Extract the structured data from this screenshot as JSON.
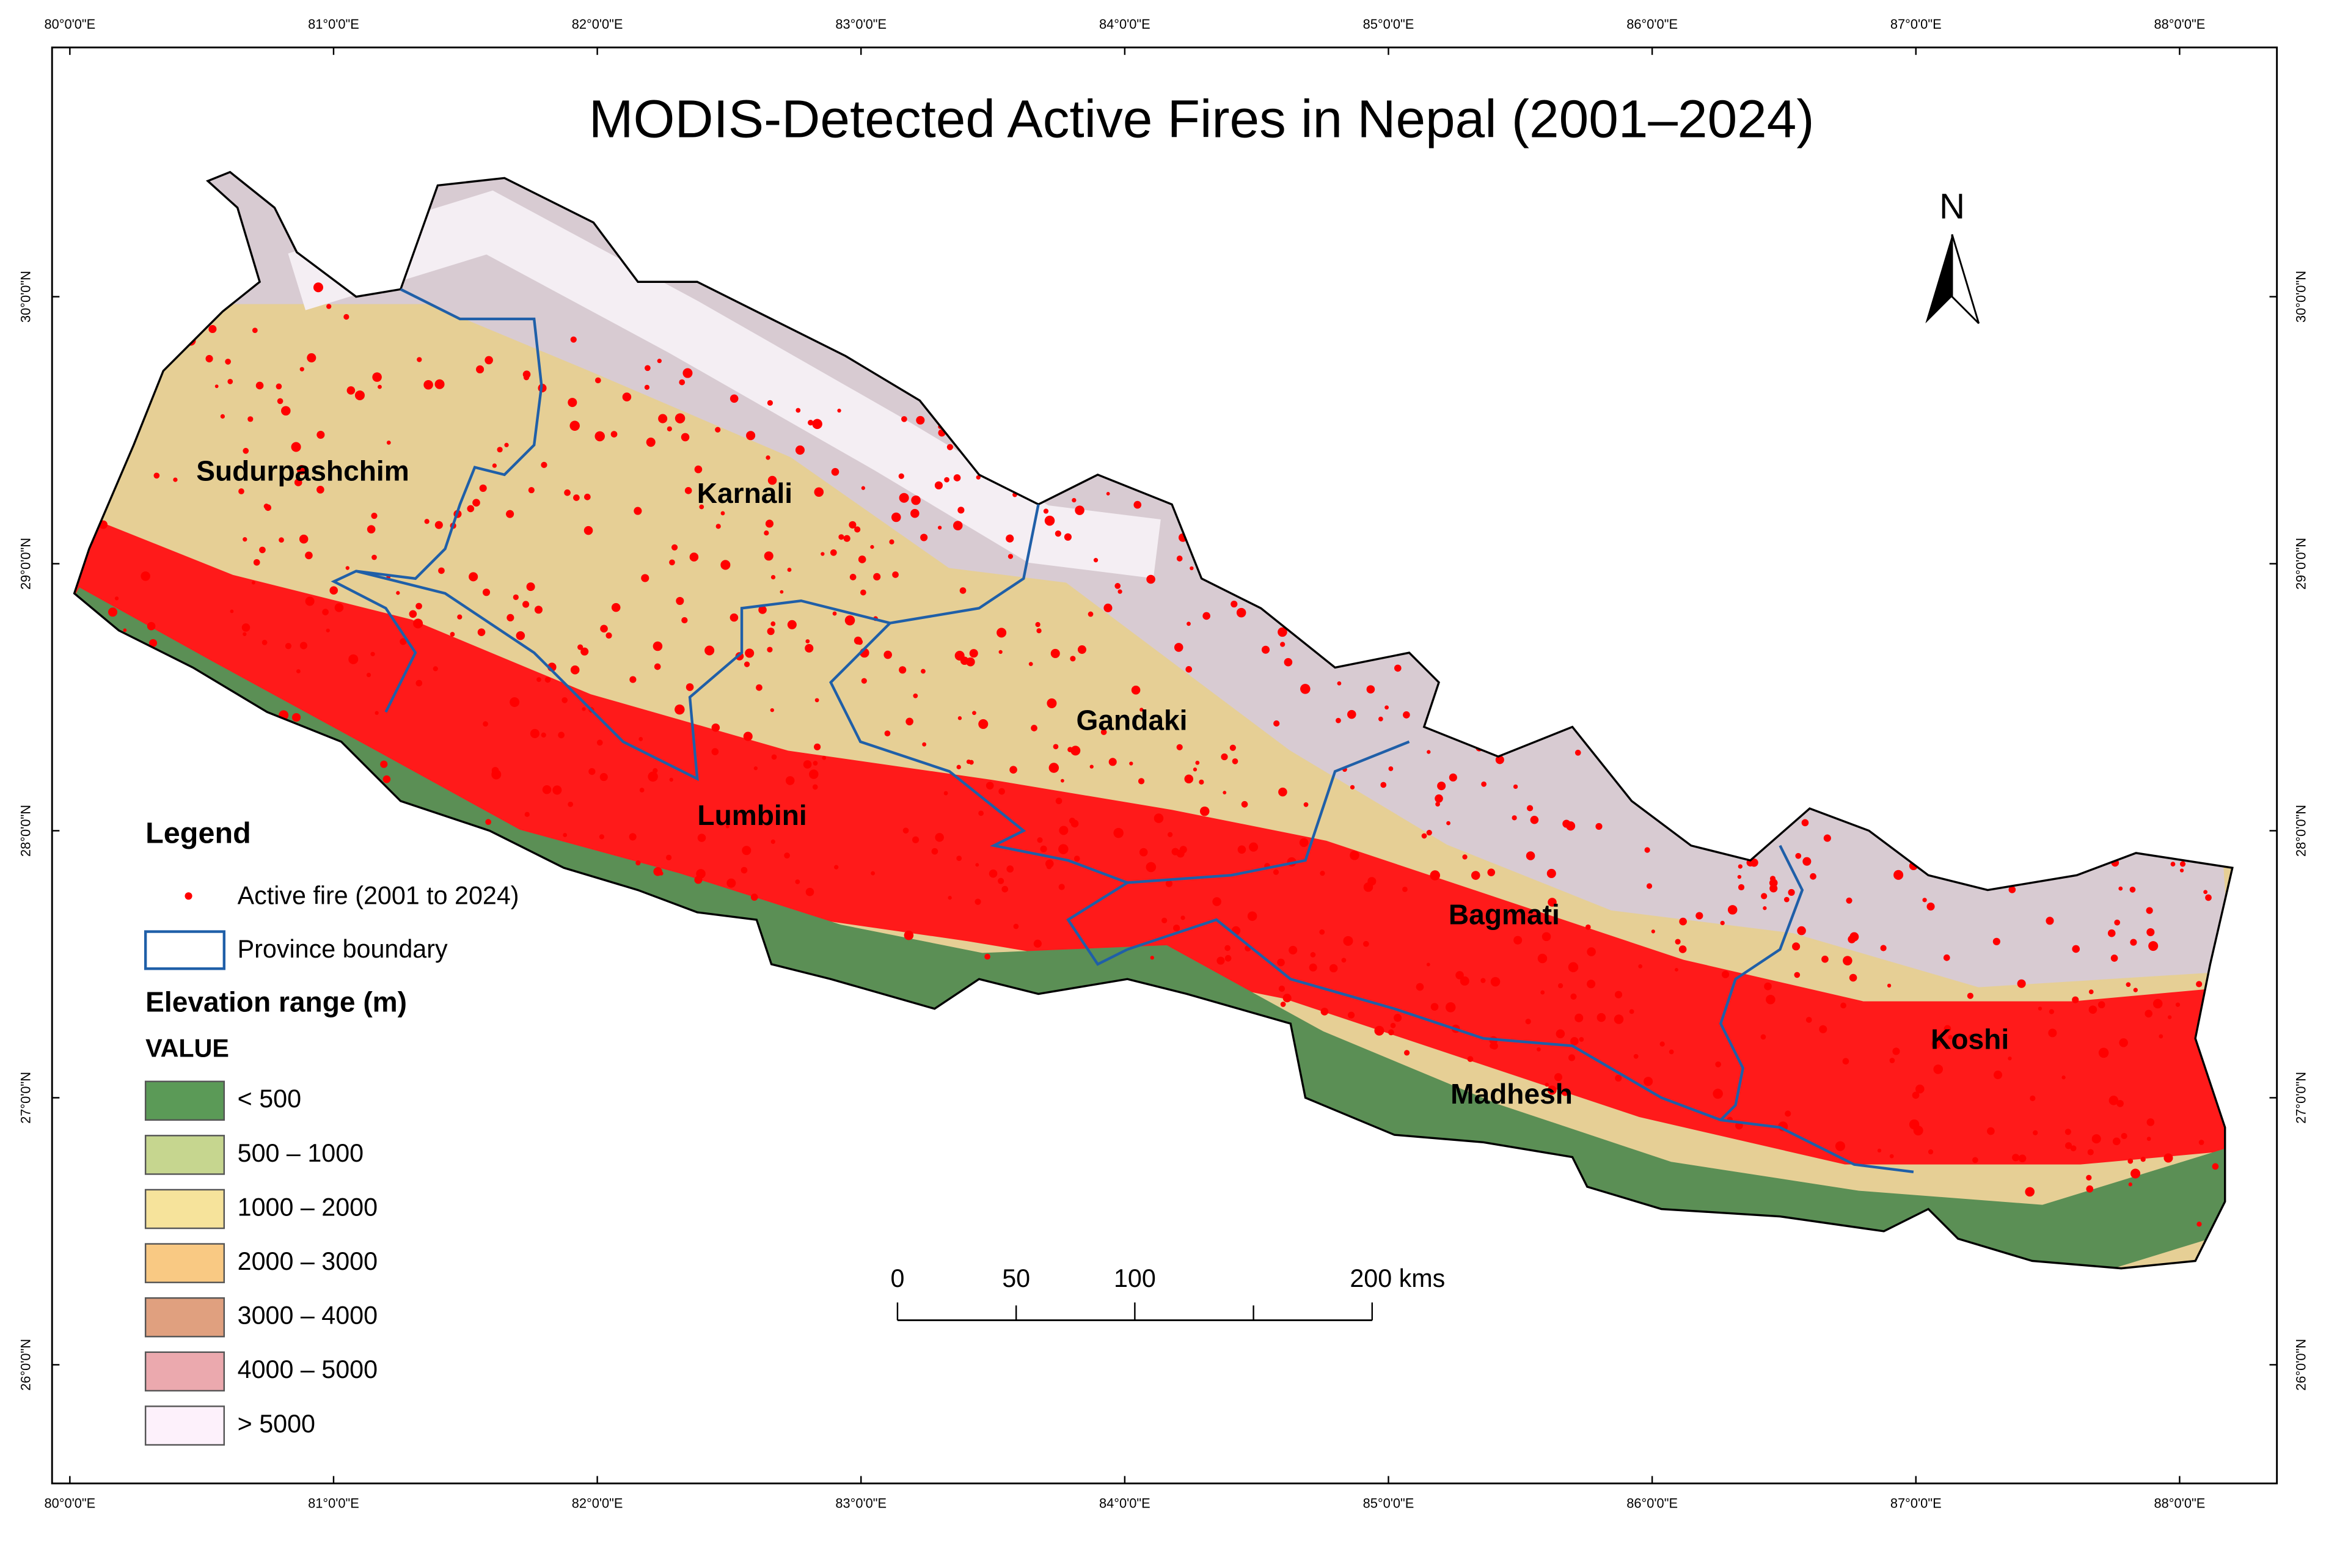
{
  "title": "MODIS-Detected Active Fires in Nepal (2001–2024)",
  "graticule": {
    "longitudes": [
      "80°0'0\"E",
      "81°0'0\"E",
      "82°0'0\"E",
      "83°0'0\"E",
      "84°0'0\"E",
      "85°0'0\"E",
      "86°0'0\"E",
      "87°0'0\"E",
      "88°0'0\"E"
    ],
    "latitudes": [
      "30°0'0\"N",
      "29°0'0\"N",
      "28°0'0\"N",
      "27°0'0\"N",
      "26°0'0\"N"
    ]
  },
  "provinces": [
    "Sudurpashchim",
    "Karnali",
    "Gandaki",
    "Lumbini",
    "Bagmati",
    "Madhesh",
    "Koshi"
  ],
  "north_arrow": "N",
  "scale_bar": [
    "0",
    "50",
    "100",
    "200 kms"
  ],
  "legend": {
    "title": "Legend",
    "fire": "Active fire (2001 to 2024)",
    "boundary": "Province boundary",
    "elevation_title": "Elevation range (m)",
    "value_header": "VALUE",
    "classes": [
      {
        "label": "< 500",
        "color": "#5b9a57"
      },
      {
        "label": "500 – 1000",
        "color": "#c6d68f"
      },
      {
        "label": "1000 – 2000",
        "color": "#f6e39b"
      },
      {
        "label": "2000 – 3000",
        "color": "#f9c983"
      },
      {
        "label": "3000 – 4000",
        "color": "#e0a07f"
      },
      {
        "label": "4000 – 5000",
        "color": "#eba9ae"
      },
      {
        "label": "> 5000",
        "color": "#fdf1fb"
      }
    ]
  }
}
